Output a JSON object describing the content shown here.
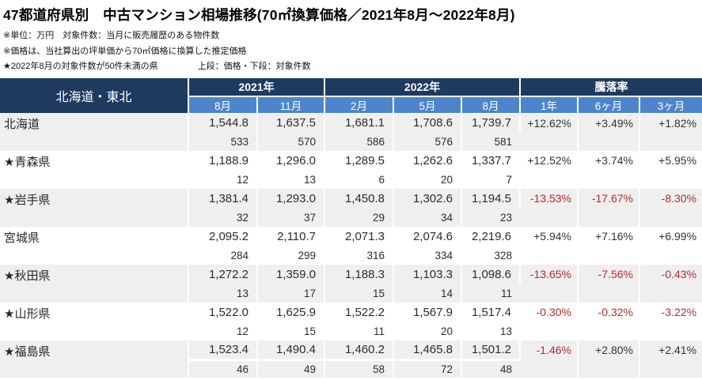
{
  "header": {
    "title": "47都道府県別　中古マンション相場推移(70㎡換算価格／2021年8月～2022年8月)",
    "note_unit": "※単位：万円　対象件数：当月に販売履歴のある物件数",
    "note_price": "※価格は、当社算出の坪単価から70㎡価格に換算した推定価格",
    "note_star": "★2022年8月の対象件数が50件未満の県",
    "note_format": "上段：価格・下段：対象件数"
  },
  "table": {
    "region_label": "北海道・東北",
    "year_groups": [
      {
        "label": "2021年",
        "months": [
          "8月",
          "11月"
        ]
      },
      {
        "label": "2022年",
        "months": [
          "2月",
          "5月",
          "8月"
        ]
      }
    ],
    "rate_group": {
      "label": "騰落率",
      "periods": [
        "1年",
        "6ヶ月",
        "3ヶ月"
      ]
    },
    "rows": [
      {
        "name": "北海道",
        "prices": [
          "1,544.8",
          "1,637.5",
          "1,681.1",
          "1,708.6",
          "1,739.7"
        ],
        "counts": [
          "533",
          "570",
          "586",
          "576",
          "581"
        ],
        "rates": [
          "+12.62%",
          "+3.49%",
          "+1.82%"
        ]
      },
      {
        "name": "★青森県",
        "prices": [
          "1,188.9",
          "1,296.0",
          "1,289.5",
          "1,262.6",
          "1,337.7"
        ],
        "counts": [
          "12",
          "13",
          "6",
          "20",
          "7"
        ],
        "rates": [
          "+12.52%",
          "+3.74%",
          "+5.95%"
        ]
      },
      {
        "name": "★岩手県",
        "prices": [
          "1,381.4",
          "1,293.0",
          "1,450.8",
          "1,302.6",
          "1,194.5"
        ],
        "counts": [
          "32",
          "37",
          "29",
          "34",
          "23"
        ],
        "rates": [
          "-13.53%",
          "-17.67%",
          "-8.30%"
        ]
      },
      {
        "name": "宮城県",
        "prices": [
          "2,095.2",
          "2,110.7",
          "2,071.3",
          "2,074.6",
          "2,219.6"
        ],
        "counts": [
          "284",
          "299",
          "316",
          "334",
          "328"
        ],
        "rates": [
          "+5.94%",
          "+7.16%",
          "+6.99%"
        ]
      },
      {
        "name": "★秋田県",
        "prices": [
          "1,272.2",
          "1,359.0",
          "1,188.3",
          "1,103.3",
          "1,098.6"
        ],
        "counts": [
          "13",
          "17",
          "15",
          "14",
          "11"
        ],
        "rates": [
          "-13.65%",
          "-7.56%",
          "-0.43%"
        ]
      },
      {
        "name": "★山形県",
        "prices": [
          "1,522.0",
          "1,625.9",
          "1,522.2",
          "1,567.9",
          "1,517.4"
        ],
        "counts": [
          "12",
          "15",
          "11",
          "20",
          "13"
        ],
        "rates": [
          "-0.30%",
          "-0.32%",
          "-3.22%"
        ]
      },
      {
        "name": "★福島県",
        "prices": [
          "1,523.4",
          "1,490.4",
          "1,460.2",
          "1,465.8",
          "1,501.2"
        ],
        "counts": [
          "46",
          "49",
          "58",
          "72",
          "48"
        ],
        "rates": [
          "-1.46%",
          "+2.80%",
          "+2.41%"
        ]
      }
    ]
  },
  "colors": {
    "header_navy": "#1e3a5f",
    "subheader_blue": "#4d85cc",
    "row_shade": "#efefef",
    "negative_red": "#b82a2e",
    "positive_text": "#333333"
  }
}
